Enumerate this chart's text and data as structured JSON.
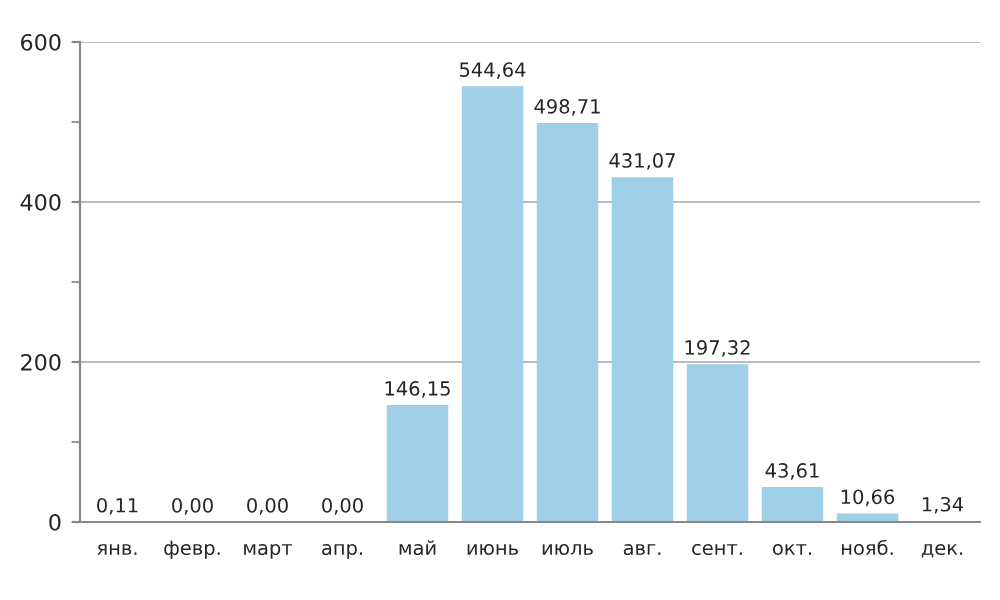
{
  "chart_data": {
    "type": "bar",
    "categories": [
      "янв.",
      "февр.",
      "март",
      "апр.",
      "май",
      "июнь",
      "июль",
      "авг.",
      "сент.",
      "окт.",
      "нояб.",
      "дек."
    ],
    "values": [
      0.11,
      0,
      0,
      0,
      146.15,
      544.64,
      498.71,
      431.07,
      197.32,
      43.61,
      10.66,
      1.34
    ],
    "value_labels": [
      "0,11",
      "0,00",
      "0,00",
      "0,00",
      "146,15",
      "544,64",
      "498,71",
      "431,07",
      "197,32",
      "43,61",
      "10,66",
      "1,34"
    ],
    "color": "#9fcfe6",
    "ylim": [
      0,
      600
    ],
    "yticks": [
      0,
      {
        "value": 100,
        "label": null
      },
      200,
      {
        "value": 300,
        "label": null
      },
      400,
      {
        "value": 500,
        "label": null
      },
      600
    ],
    "grid": "y"
  }
}
